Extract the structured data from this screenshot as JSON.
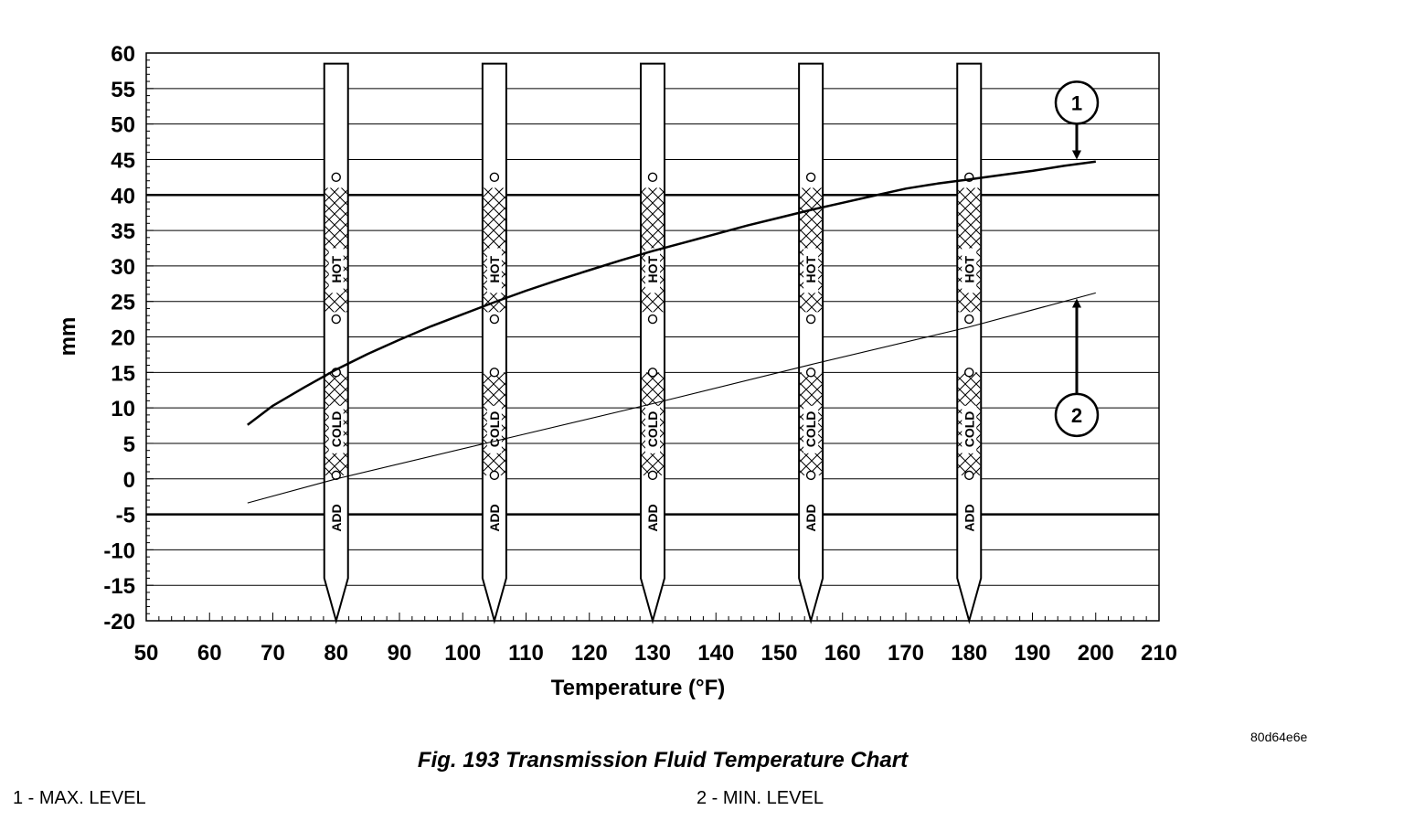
{
  "chart_data": {
    "type": "line",
    "title": "",
    "xlabel": "Temperature (°F)",
    "ylabel": "mm",
    "xlim": [
      50,
      210
    ],
    "ylim": [
      -20,
      60
    ],
    "x_ticks": [
      50,
      60,
      70,
      80,
      90,
      100,
      110,
      120,
      130,
      140,
      150,
      160,
      170,
      180,
      190,
      200,
      210
    ],
    "y_ticks": [
      60,
      55,
      50,
      45,
      40,
      35,
      30,
      25,
      20,
      15,
      10,
      5,
      0,
      -5,
      -10,
      -15,
      -20
    ],
    "x_tick_labels": [
      "50",
      "60",
      "70",
      "80",
      "90",
      "100",
      "110",
      "120",
      "130",
      "140",
      "150",
      "160",
      "170",
      "180",
      "190",
      "200",
      "210"
    ],
    "y_tick_labels": [
      "60",
      "55",
      "50",
      "45",
      "40",
      "35",
      "30",
      "25",
      "20",
      "15",
      "10",
      "5",
      "0",
      "-5",
      "-10",
      "-15",
      "-20"
    ],
    "grid": "horizontal",
    "bold_gridlines_y": [
      40,
      -5
    ],
    "series": [
      {
        "callout": "1",
        "x": [
          66,
          70,
          75,
          80,
          85,
          90,
          95,
          100,
          105,
          110,
          115,
          120,
          125,
          130,
          135,
          140,
          145,
          150,
          155,
          160,
          165,
          170,
          175,
          180,
          185,
          190,
          195,
          200
        ],
        "y": [
          7.6,
          10.3,
          12.9,
          15.4,
          17.6,
          19.6,
          21.5,
          23.2,
          24.9,
          26.5,
          28.0,
          29.4,
          30.8,
          32.1,
          33.3,
          34.5,
          35.7,
          36.8,
          37.9,
          38.9,
          39.9,
          40.9,
          41.6,
          42.2,
          42.8,
          43.4,
          44.1,
          44.7
        ]
      },
      {
        "callout": "2",
        "x": [
          66,
          80,
          105,
          130,
          155,
          180,
          200
        ],
        "y": [
          -3.4,
          0.0,
          5.3,
          10.6,
          16.1,
          21.4,
          26.2
        ]
      }
    ],
    "dipsticks": {
      "x_positions": [
        80,
        105,
        130,
        155,
        180
      ],
      "hot_label": "HOT",
      "cold_label": "COLD",
      "add_label": "ADD"
    },
    "callouts": [
      {
        "number": "1",
        "label": "MAX. LEVEL"
      },
      {
        "number": "2",
        "label": "MIN. LEVEL"
      }
    ]
  },
  "figure": {
    "id": "80d64e6e",
    "caption": "Fig. 193 Transmission Fluid Temperature Chart",
    "legend_1": "1 - MAX. LEVEL",
    "legend_2": "2 - MIN. LEVEL"
  }
}
